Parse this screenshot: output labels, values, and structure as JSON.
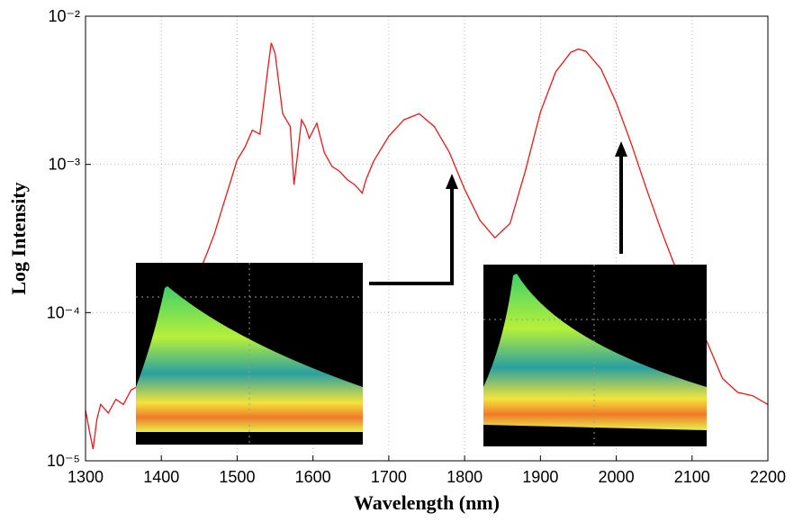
{
  "chart_data": {
    "type": "line",
    "x_label": "Wavelength (nm)",
    "y_label": "Log Intensity",
    "log_y": true,
    "grid": true,
    "xlim": [
      1300,
      2200
    ],
    "xticks": [
      1300,
      1400,
      1500,
      1600,
      1700,
      1800,
      1900,
      2000,
      2100,
      2200
    ],
    "ylim": [
      1e-05,
      0.01
    ],
    "yticks": [
      {
        "value": 1e-05,
        "label": "10⁻⁵"
      },
      {
        "value": 0.0001,
        "label": "10⁻⁴"
      },
      {
        "value": 0.001,
        "label": "10⁻³"
      },
      {
        "value": 0.01,
        "label": "10⁻²"
      }
    ],
    "series": [
      {
        "color": "#e8191c",
        "x": [
          1300,
          1305,
          1310,
          1315,
          1320,
          1330,
          1340,
          1350,
          1360,
          1370,
          1380,
          1400,
          1420,
          1440,
          1460,
          1470,
          1480,
          1490,
          1500,
          1510,
          1520,
          1530,
          1540,
          1545,
          1550,
          1560,
          1570,
          1575,
          1580,
          1585,
          1590,
          1595,
          1605,
          1615,
          1625,
          1635,
          1645,
          1655,
          1665,
          1670,
          1680,
          1700,
          1720,
          1740,
          1760,
          1780,
          1800,
          1820,
          1840,
          1860,
          1880,
          1900,
          1920,
          1940,
          1950,
          1960,
          1980,
          2000,
          2020,
          2040,
          2060,
          2080,
          2100,
          2120,
          2140,
          2160,
          2180,
          2200
        ],
        "values": [
          2.2e-05,
          1.6e-05,
          1.2e-05,
          1.9e-05,
          2.4e-05,
          2.1e-05,
          2.6e-05,
          2.4e-05,
          3e-05,
          3.2e-05,
          4e-05,
          6e-05,
          9e-05,
          0.00014,
          0.00025,
          0.00034,
          0.0005,
          0.00073,
          0.00107,
          0.0013,
          0.0017,
          0.0016,
          0.0042,
          0.0066,
          0.0056,
          0.0022,
          0.0018,
          0.00073,
          0.0012,
          0.002,
          0.0018,
          0.0015,
          0.0019,
          0.0012,
          0.00097,
          0.0009,
          0.00079,
          0.00073,
          0.00064,
          0.00079,
          0.00105,
          0.00155,
          0.002,
          0.0022,
          0.0018,
          0.0012,
          0.00068,
          0.00042,
          0.00032,
          0.0004,
          0.0009,
          0.00225,
          0.0042,
          0.0057,
          0.006,
          0.0058,
          0.0044,
          0.0026,
          0.00137,
          0.00068,
          0.00035,
          0.00019,
          0.00011,
          6.3e-05,
          3.6e-05,
          2.9e-05,
          2.75e-05,
          2.4e-05
        ]
      }
    ]
  }
}
